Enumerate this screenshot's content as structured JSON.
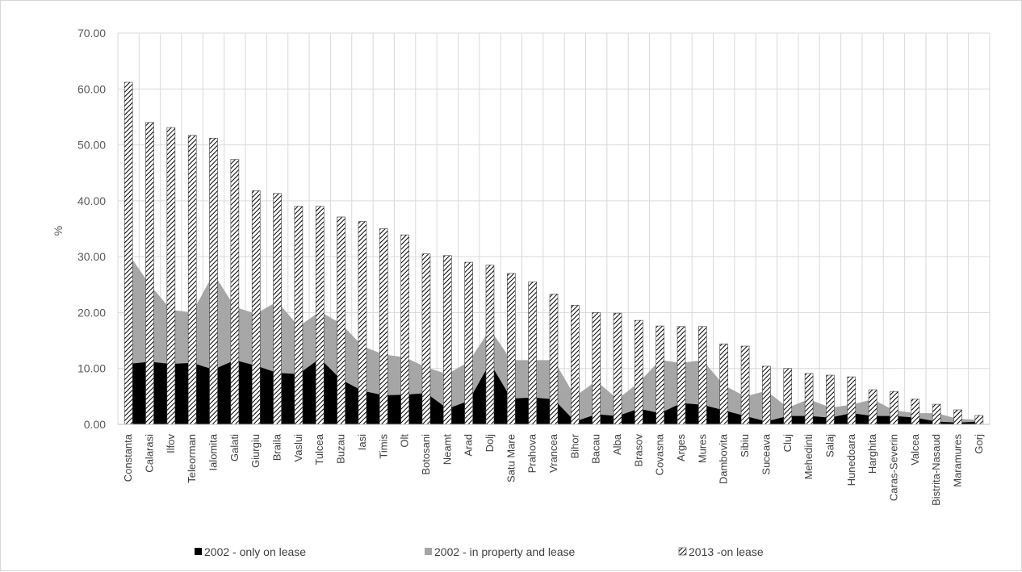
{
  "chart_data": {
    "type": "area+bar",
    "title": "",
    "xlabel": "",
    "ylabel": "%",
    "ylim": [
      0,
      70
    ],
    "yticks": [
      "0.00",
      "10.00",
      "20.00",
      "30.00",
      "40.00",
      "50.00",
      "60.00",
      "70.00"
    ],
    "grid": true,
    "legend_position": "bottom",
    "categories": [
      "Constanta",
      "Calarasi",
      "Ilfov",
      "Teleorman",
      "Ialomita",
      "Galati",
      "Giurgiu",
      "Braila",
      "Vaslui",
      "Tulcea",
      "Buzau",
      "Iasi",
      "Timis",
      "Olt",
      "Botosani",
      "Neamt",
      "Arad",
      "Dolj",
      "Satu Mare",
      "Prahova",
      "Vrancea",
      "Bihor",
      "Bacau",
      "Alba",
      "Brasov",
      "Covasna",
      "Arges",
      "Mures",
      "Dambovita",
      "Sibiu",
      "Suceava",
      "Cluj",
      "Mehedinti",
      "Salaj",
      "Hunedoara",
      "Harghita",
      "Caras-Severin",
      "Valcea",
      "Bistrita-Nasaud",
      "Maramures",
      "Gorj"
    ],
    "series": [
      {
        "name": "2002 - only on lease",
        "kind": "area",
        "color": "#000000",
        "values": [
          10.8,
          11.2,
          10.8,
          11.0,
          9.8,
          11.5,
          10.5,
          9.2,
          9.0,
          11.8,
          8.0,
          6.0,
          5.2,
          5.3,
          5.6,
          2.8,
          4.2,
          11.0,
          4.6,
          4.8,
          4.5,
          0.5,
          1.8,
          1.5,
          2.8,
          2.0,
          3.8,
          3.5,
          2.5,
          1.5,
          0.5,
          1.5,
          1.5,
          1.2,
          2.0,
          1.5,
          1.5,
          1.2,
          0.5,
          0.3,
          0.5
        ]
      },
      {
        "name": "2002 - in property and lease",
        "kind": "area",
        "color": "#a6a6a6",
        "values": [
          30.5,
          25.0,
          20.5,
          20.0,
          27.0,
          21.0,
          19.8,
          22.0,
          17.5,
          20.2,
          18.0,
          14.0,
          12.5,
          12.0,
          10.2,
          9.0,
          11.2,
          17.0,
          11.5,
          11.5,
          11.5,
          5.0,
          7.8,
          4.5,
          7.5,
          11.5,
          11.0,
          11.5,
          7.0,
          5.0,
          6.0,
          3.0,
          4.5,
          3.0,
          3.5,
          4.5,
          2.5,
          2.0,
          2.0,
          1.0,
          0.8
        ]
      },
      {
        "name": "2013 -on lease",
        "kind": "bar",
        "color": "hatched",
        "values": [
          61.2,
          54.0,
          53.1,
          51.7,
          51.2,
          47.4,
          41.8,
          41.3,
          39.0,
          39.0,
          37.1,
          36.3,
          35.0,
          33.9,
          30.5,
          30.2,
          29.0,
          28.5,
          27.0,
          25.5,
          23.3,
          21.3,
          20.0,
          19.9,
          18.6,
          17.6,
          17.5,
          17.5,
          14.4,
          14.0,
          10.4,
          10.0,
          9.1,
          8.8,
          8.5,
          6.2,
          5.9,
          4.5,
          3.6,
          2.6,
          1.6
        ]
      }
    ]
  },
  "colors": {
    "grid": "#d9d9d9",
    "axis": "#bfbfbf",
    "only_lease": "#000000",
    "property_lease": "#a6a6a6",
    "hatch_line": "#000000",
    "hatch_bg": "#ffffff"
  }
}
